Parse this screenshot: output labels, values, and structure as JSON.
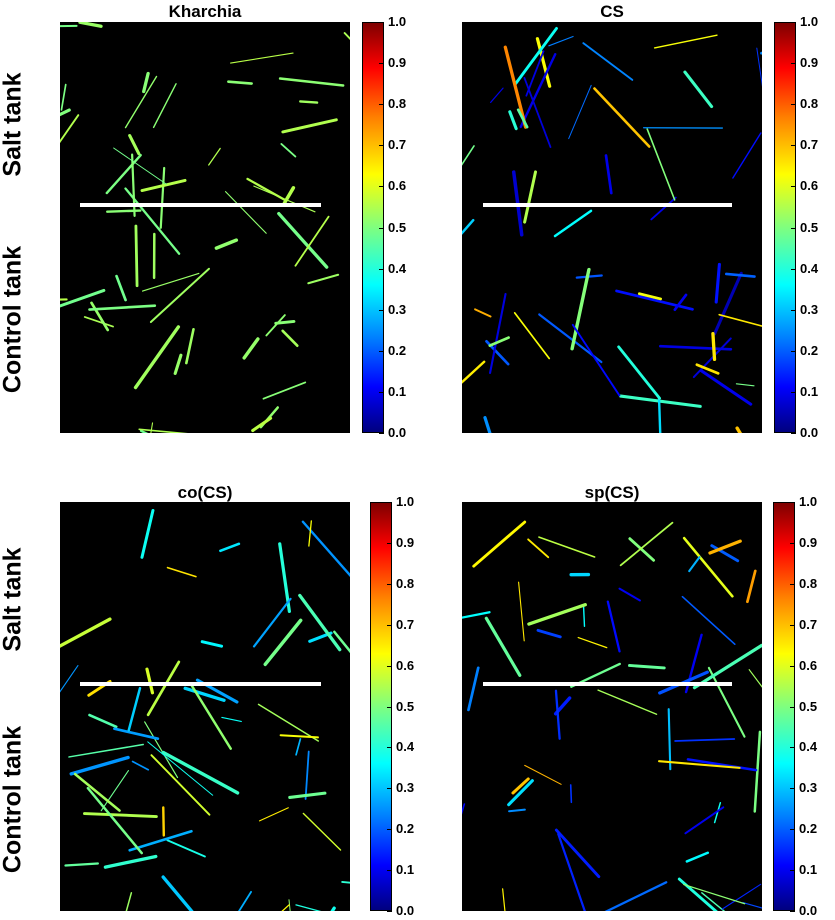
{
  "panels": [
    {
      "title": "Kharchia",
      "cmin": 0.48,
      "cmax": 0.56
    },
    {
      "title": "CS",
      "cmin": 0.05,
      "cmax": 0.75
    },
    {
      "title": "co(CS)",
      "cmin": 0.25,
      "cmax": 0.68
    },
    {
      "title": "sp(CS)",
      "cmin": 0.1,
      "cmax": 0.75
    }
  ],
  "row_labels": {
    "top": "Salt tank",
    "bottom": "Control tank"
  },
  "colorbar": {
    "ticks": [
      "1.0",
      "0.9",
      "0.8",
      "0.7",
      "0.6",
      "0.5",
      "0.4",
      "0.3",
      "0.2",
      "0.1",
      "0.0"
    ],
    "colormap": "jet"
  },
  "colors": {
    "background": "#000000",
    "separator": "#ffffff"
  }
}
